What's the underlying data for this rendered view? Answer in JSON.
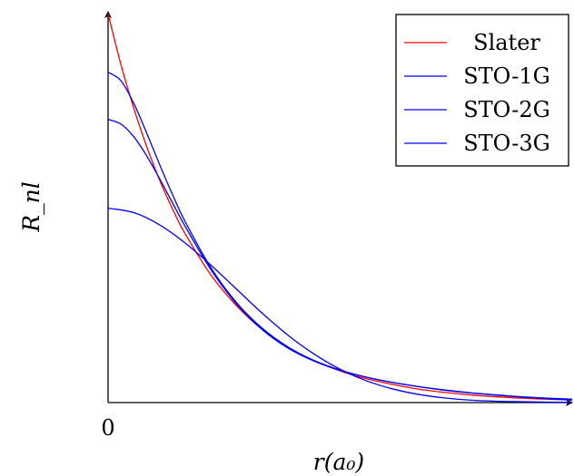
{
  "chart_data": {
    "type": "line",
    "xlabel": "r(a₀)",
    "ylabel": "R_nl",
    "x_ticks": [
      "0"
    ],
    "xlim": [
      0,
      3.6
    ],
    "ylim": [
      0,
      1.45
    ],
    "grid": false,
    "legend_position": "top-right",
    "colors": {
      "Slater": "#ff0000",
      "STO": "#0000ff"
    },
    "series": [
      {
        "name": "Slater",
        "color": "#ff0000",
        "x": [
          0,
          0.1,
          0.2,
          0.3,
          0.4,
          0.5,
          0.6,
          0.8,
          1.0,
          1.2,
          1.4,
          1.6,
          1.8,
          2.0,
          2.4,
          2.8,
          3.2,
          3.6
        ],
        "y": [
          1.4,
          1.217,
          1.059,
          0.921,
          0.801,
          0.697,
          0.606,
          0.458,
          0.347,
          0.262,
          0.198,
          0.15,
          0.114,
          0.086,
          0.049,
          0.028,
          0.016,
          0.009
        ]
      },
      {
        "name": "STO-1G",
        "color": "#0000ff",
        "x": [
          0,
          0.2,
          0.4,
          0.6,
          0.8,
          1.0,
          1.2,
          1.4,
          1.6,
          1.8,
          2.0,
          2.2,
          2.4,
          2.6,
          2.8,
          3.0,
          3.2,
          3.4,
          3.6
        ],
        "y": [
          0.7,
          0.684,
          0.64,
          0.574,
          0.494,
          0.407,
          0.32,
          0.241,
          0.174,
          0.12,
          0.079,
          0.05,
          0.03,
          0.017,
          0.009,
          0.005,
          0.003,
          0.0015,
          0.0008
        ]
      },
      {
        "name": "STO-2G",
        "color": "#0000ff",
        "x": [
          0,
          0.1,
          0.2,
          0.3,
          0.4,
          0.5,
          0.6,
          0.8,
          1.0,
          1.2,
          1.4,
          1.6,
          1.8,
          2.0,
          2.2,
          2.4,
          2.6,
          2.8,
          3.0,
          3.2,
          3.4,
          3.6
        ],
        "y": [
          1.02,
          1.003,
          0.957,
          0.888,
          0.806,
          0.719,
          0.633,
          0.477,
          0.353,
          0.261,
          0.195,
          0.149,
          0.116,
          0.092,
          0.073,
          0.058,
          0.046,
          0.036,
          0.028,
          0.021,
          0.016,
          0.012
        ]
      },
      {
        "name": "STO-3G",
        "color": "#0000ff",
        "x": [
          0,
          0.1,
          0.2,
          0.3,
          0.4,
          0.5,
          0.6,
          0.8,
          1.0,
          1.2,
          1.4,
          1.6,
          1.8,
          2.0,
          2.2,
          2.4,
          2.6,
          2.8,
          3.0,
          3.2,
          3.4,
          3.6
        ],
        "y": [
          1.19,
          1.159,
          1.077,
          0.97,
          0.857,
          0.749,
          0.65,
          0.484,
          0.358,
          0.266,
          0.199,
          0.151,
          0.117,
          0.092,
          0.073,
          0.058,
          0.045,
          0.035,
          0.027,
          0.02,
          0.014,
          0.009
        ]
      }
    ]
  }
}
